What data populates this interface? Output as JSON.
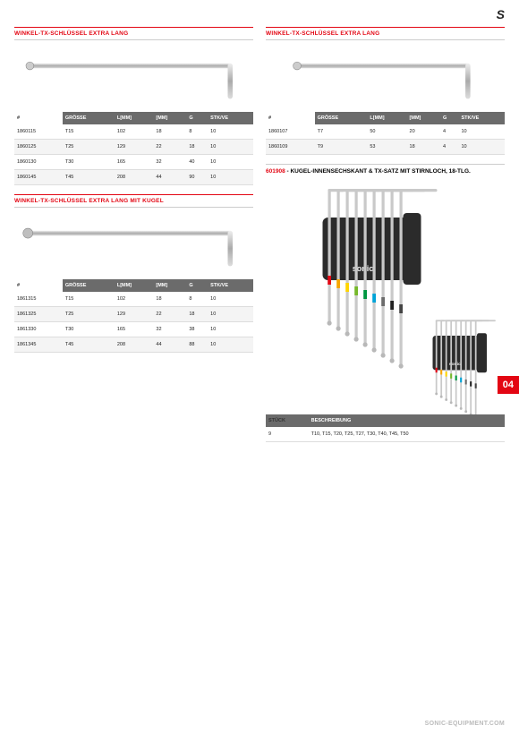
{
  "pageTab": "04",
  "footer": "SONIC-EQUIPMENT.COM",
  "logo": "S",
  "left": {
    "section1": {
      "title": "WINKEL-TX-SCHLÜSSEL EXTRA LANG",
      "headers": [
        "#",
        "GRÖSSE",
        "L[MM]",
        "[MM]",
        "G",
        "STK/VE"
      ],
      "rows": [
        [
          "1860115",
          "T15",
          "102",
          "18",
          "8",
          "10"
        ],
        [
          "1860125",
          "T25",
          "129",
          "22",
          "18",
          "10"
        ],
        [
          "1860130",
          "T30",
          "165",
          "32",
          "40",
          "10"
        ],
        [
          "1860145",
          "T45",
          "208",
          "44",
          "90",
          "10"
        ]
      ]
    },
    "section2": {
      "title": "WINKEL-TX-SCHLÜSSEL EXTRA LANG MIT KUGEL",
      "headers": [
        "#",
        "GRÖSSE",
        "L[MM]",
        "[MM]",
        "G",
        "STK/VE"
      ],
      "rows": [
        [
          "1861315",
          "T15",
          "102",
          "18",
          "8",
          "10"
        ],
        [
          "1861325",
          "T25",
          "129",
          "22",
          "18",
          "10"
        ],
        [
          "1861330",
          "T30",
          "165",
          "32",
          "38",
          "10"
        ],
        [
          "1861345",
          "T45",
          "208",
          "44",
          "88",
          "10"
        ]
      ]
    }
  },
  "right": {
    "section1": {
      "title": "WINKEL-TX-SCHLÜSSEL EXTRA LANG",
      "headers": [
        "#",
        "GRÖSSE",
        "L[MM]",
        "[MM]",
        "G",
        "STK/VE"
      ],
      "rows": [
        [
          "1860107",
          "T7",
          "50",
          "20",
          "4",
          "10"
        ],
        [
          "1860109",
          "T9",
          "53",
          "18",
          "4",
          "10"
        ]
      ]
    },
    "set": {
      "code": "601908",
      "title": " - KUGEL-INNENSECHSKANT & TX-SATZ MIT STIRNLOCH, 18-TLG.",
      "descHeaders": [
        "STÜCK",
        "BESCHREIBUNG"
      ],
      "descRows": [
        [
          "9",
          "T10, T15, T20, T25, T27, T30, T40, T45, T50"
        ]
      ],
      "colors": [
        "#e30613",
        "#f7a600",
        "#ffd500",
        "#76b82a",
        "#009640",
        "#00a3d7",
        "#6b6b6b",
        "#222222",
        "#444444"
      ]
    }
  }
}
